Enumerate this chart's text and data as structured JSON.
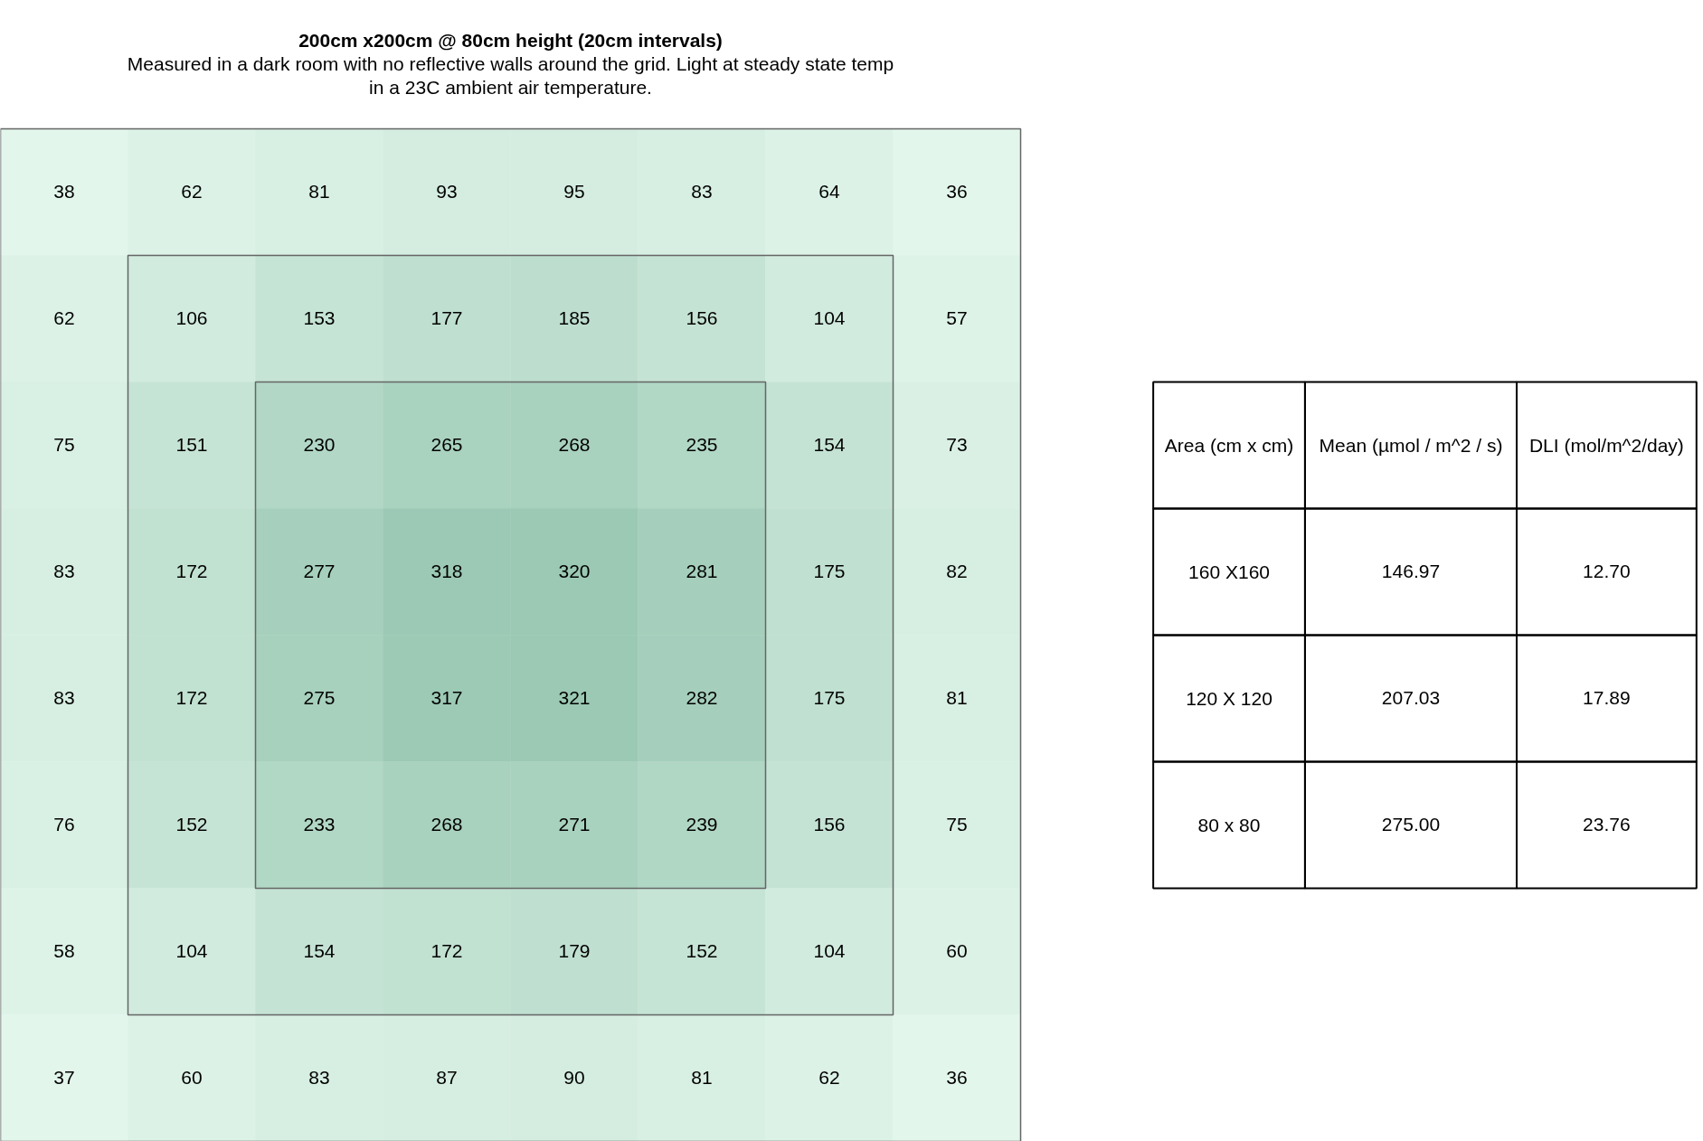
{
  "chart_data": [
    {
      "type": "heatmap",
      "title": "200cm x200cm @ 80cm height (20cm intervals)",
      "subtitle": "Measured in a dark room with no reflective walls around the grid. Light at steady state temp in a 23C ambient air temperature.",
      "categories": [
        null,
        null,
        null,
        null,
        null,
        null,
        null,
        null
      ],
      "y_categories": [
        null,
        null,
        null,
        null,
        null,
        null,
        null,
        null
      ],
      "data_labels": true,
      "cells": [
        [
          38,
          62,
          81,
          93,
          95,
          83,
          64,
          36
        ],
        [
          62,
          106,
          153,
          177,
          185,
          156,
          104,
          57
        ],
        [
          75,
          151,
          230,
          265,
          268,
          235,
          154,
          73
        ],
        [
          83,
          172,
          277,
          318,
          320,
          281,
          175,
          82
        ],
        [
          83,
          172,
          275,
          317,
          321,
          282,
          175,
          81
        ],
        [
          76,
          152,
          233,
          268,
          271,
          239,
          156,
          75
        ],
        [
          58,
          104,
          154,
          172,
          179,
          152,
          104,
          60
        ],
        [
          37,
          60,
          83,
          87,
          90,
          81,
          62,
          36
        ]
      ]
    },
    {
      "type": "other",
      "annotations": [
        "Area (cm x cm)",
        "Mean (µmol / m^2 / s)",
        "DLI (mol/m^2/day)",
        "160 X160",
        "146.97",
        "12.70",
        "120 X 120",
        "207.03",
        "17.89",
        "80 x 80",
        "275.00",
        "23.76"
      ]
    }
  ]
}
